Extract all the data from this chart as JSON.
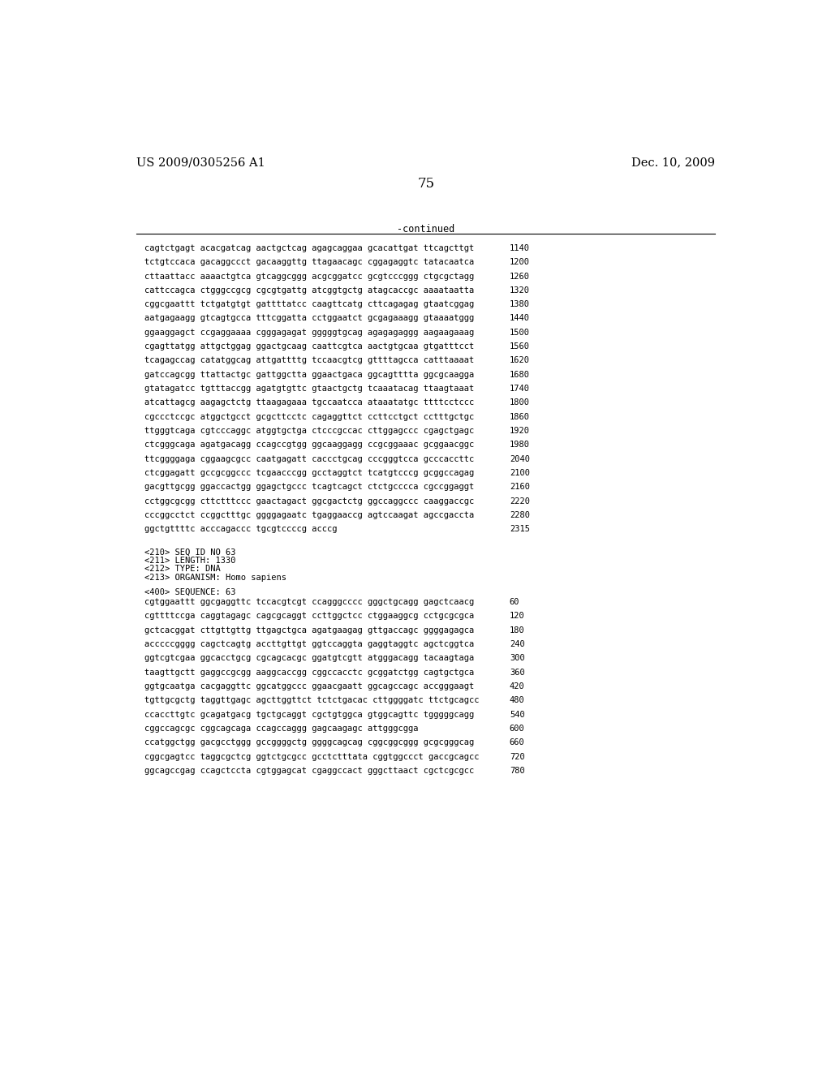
{
  "header_left": "US 2009/0305256 A1",
  "header_right": "Dec. 10, 2009",
  "page_number": "75",
  "continued_label": "-continued",
  "background_color": "#ffffff",
  "text_color": "#000000",
  "font_size_header": 10.5,
  "font_size_body": 7.5,
  "font_size_page": 12,
  "sequence_lines_part1": [
    [
      "cagtctgagt acacgatcag aactgctcag agagcaggaa gcacattgat ttcagcttgt",
      "1140"
    ],
    [
      "tctgtccaca gacaggccct gacaaggttg ttagaacagc cggagaggtc tatacaatca",
      "1200"
    ],
    [
      "cttaattacc aaaactgtca gtcaggcggg acgcggatcc gcgtcccggg ctgcgctagg",
      "1260"
    ],
    [
      "cattccagca ctgggccgcg cgcgtgattg atcggtgctg atagcaccgc aaaataatta",
      "1320"
    ],
    [
      "cggcgaattt tctgatgtgt gattttatcc caagttcatg cttcagagag gtaatcggag",
      "1380"
    ],
    [
      "aatgagaagg gtcagtgcca tttcggatta cctggaatct gcgagaaagg gtaaaatggg",
      "1440"
    ],
    [
      "ggaaggagct ccgaggaaaa cgggagagat gggggtgcag agagagaggg aagaagaaag",
      "1500"
    ],
    [
      "cgagttatgg attgctggag ggactgcaag caattcgtca aactgtgcaa gtgatttcct",
      "1560"
    ],
    [
      "tcagagccag catatggcag attgattttg tccaacgtcg gttttagcca catttaaaat",
      "1620"
    ],
    [
      "gatccagcgg ttattactgc gattggctta ggaactgaca ggcagtttta ggcgcaagga",
      "1680"
    ],
    [
      "gtatagatcc tgtttaccgg agatgtgttc gtaactgctg tcaaatacag ttaagtaaat",
      "1740"
    ],
    [
      "atcattagcg aagagctctg ttaagagaaa tgccaatcca ataaatatgc ttttcctccc",
      "1800"
    ],
    [
      "cgccctccgc atggctgcct gcgcttcctc cagaggttct ccttcctgct cctttgctgc",
      "1860"
    ],
    [
      "ttgggtcaga cgtcccaggc atggtgctga ctcccgccac cttggagccc cgagctgagc",
      "1920"
    ],
    [
      "ctcgggcaga agatgacagg ccagccgtgg ggcaaggagg ccgcggaaac gcggaacggc",
      "1980"
    ],
    [
      "ttcggggaga cggaagcgcc caatgagatt caccctgcag cccgggtcca gcccaccttc",
      "2040"
    ],
    [
      "ctcggagatt gccgcggccc tcgaacccgg gcctaggtct tcatgtcccg gcggccagag",
      "2100"
    ],
    [
      "gacgttgcgg ggaccactgg ggagctgccc tcagtcagct ctctgcccca cgccggaggt",
      "2160"
    ],
    [
      "cctggcgcgg cttctttccc gaactagact ggcgactctg ggccaggccc caaggaccgc",
      "2220"
    ],
    [
      "cccggcctct ccggctttgc ggggagaatc tgaggaaccg agtccaagat agccgaccta",
      "2280"
    ],
    [
      "ggctgttttc acccagaccc tgcgtccccg acccg",
      "2315"
    ]
  ],
  "metadata_lines": [
    "<210> SEQ ID NO 63",
    "<211> LENGTH: 1330",
    "<212> TYPE: DNA",
    "<213> ORGANISM: Homo sapiens"
  ],
  "sequence_label": "<400> SEQUENCE: 63",
  "sequence_lines_part2": [
    [
      "cgtggaattt ggcgaggttc tccacgtcgt ccagggcccc gggctgcagg gagctcaacg",
      "60"
    ],
    [
      "cgttttccga caggtagagc cagcgcaggt ccttggctcc ctggaaggcg cctgcgcgca",
      "120"
    ],
    [
      "gctcacggat cttgttgttg ttgagctgca agatgaagag gttgaccagc ggggagagca",
      "180"
    ],
    [
      "acccccgggg cagctcagtg accttgttgt ggtccaggta gaggtaggtc agctcggtca",
      "240"
    ],
    [
      "ggtcgtcgaa ggcacctgcg cgcagcacgc ggatgtcgtt atgggacagg tacaagtaga",
      "300"
    ],
    [
      "taagttgctt gaggccgcgg aaggcaccgg cggccacctc gcggatctgg cagtgctgca",
      "360"
    ],
    [
      "ggtgcaatga cacgaggttc ggcatggccc ggaacgaatt ggcagccagc accgggaagt",
      "420"
    ],
    [
      "tgttgcgctg taggttgagc agcttggttct tctctgacac cttggggatc ttctgcagcc",
      "480"
    ],
    [
      "ccaccttgtc gcagatgacg tgctgcaggt cgctgtggca gtggcagttc tgggggcagg",
      "540"
    ],
    [
      "cggccagcgc cggcagcaga ccagccaggg gagcaagagc attgggcgga",
      "600"
    ],
    [
      "ccatggctgg gacgcctggg gccggggctg ggggcagcag cggcggcggg gcgcgggcag",
      "660"
    ],
    [
      "cggcgagtcc taggcgctcg ggtctgcgcc gcctctttata cggtggccct gaccgcagcc",
      "720"
    ],
    [
      "ggcagccgag ccagctccta cgtggagcat cgaggccact gggcttaact cgctcgcgcc",
      "780"
    ]
  ]
}
